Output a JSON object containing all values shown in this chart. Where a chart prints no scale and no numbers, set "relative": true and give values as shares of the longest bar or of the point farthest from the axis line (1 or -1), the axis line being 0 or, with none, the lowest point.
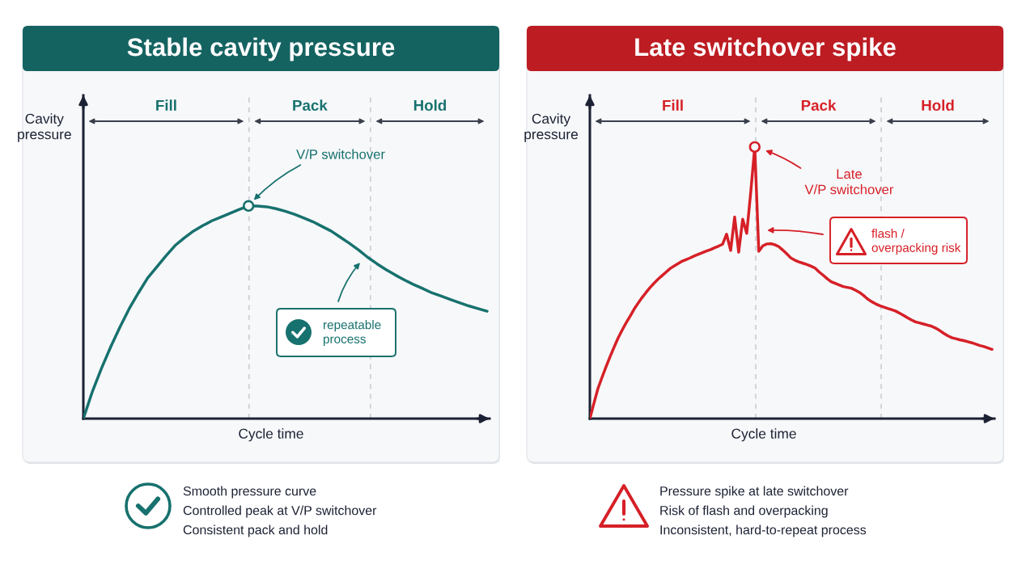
{
  "chart_data": [
    {
      "type": "line",
      "title": "Stable cavity pressure",
      "xlabel": "Cycle time",
      "ylabel": "Cavity\npressure",
      "relative": true,
      "categories": [
        null,
        null,
        null,
        null,
        null,
        null,
        null,
        null,
        null,
        null,
        null,
        null,
        null,
        null,
        null,
        null,
        null,
        null,
        null,
        null,
        null,
        null,
        null,
        null,
        null,
        null,
        null,
        null,
        null,
        null,
        null,
        null,
        null,
        null,
        null,
        null,
        null,
        null,
        null,
        null,
        null,
        null,
        null,
        null,
        null
      ],
      "series": [
        {
          "color": "#17716e",
          "values": [
            0,
            0.129,
            0.239,
            0.339,
            0.431,
            0.517,
            0.591,
            0.661,
            0.713,
            0.765,
            0.814,
            0.85,
            0.882,
            0.907,
            0.93,
            0.948,
            0.966,
            0.984,
            1.0,
            0.999,
            0.996,
            0.987,
            0.975,
            0.961,
            0.944,
            0.926,
            0.904,
            0.882,
            0.853,
            0.824,
            0.793,
            0.758,
            0.728,
            0.7,
            0.675,
            0.652,
            0.63,
            0.611,
            0.591,
            0.576,
            0.56,
            0.545,
            0.53,
            0.517,
            0.505
          ]
        }
      ],
      "annotations": [
        "Fill",
        "Pack",
        "Hold",
        "V/P switchover",
        "repeatable\nprocess",
        "Smooth pressure curve",
        "Controlled peak at V/P switchover",
        "Consistent pack and hold"
      ]
    },
    {
      "type": "line",
      "title": "Late switchover spike",
      "xlabel": "Cycle time",
      "ylabel": "Cavity\npressure",
      "relative": true,
      "categories": [
        null,
        null,
        null,
        null,
        null,
        null,
        null,
        null,
        null,
        null,
        null,
        null,
        null,
        null,
        null,
        null,
        null,
        null,
        null,
        null,
        null,
        null,
        null,
        null,
        null,
        null,
        null,
        null,
        null,
        null,
        null,
        null,
        null,
        null,
        null,
        null,
        null,
        null,
        null,
        null,
        null,
        null,
        null,
        null,
        null,
        null,
        null,
        null,
        null,
        null,
        null,
        null,
        null,
        null,
        null,
        null,
        null,
        null,
        null,
        null,
        null,
        null,
        null,
        null,
        null,
        null,
        null,
        null,
        null,
        null,
        null,
        null,
        null,
        null,
        null,
        null,
        null,
        null,
        null,
        null,
        null,
        null,
        null,
        null,
        null,
        null,
        null,
        null,
        null,
        null,
        null,
        null,
        null,
        null,
        null,
        null,
        null,
        null,
        null,
        null,
        null
      ],
      "series": [
        {
          "color": "#d62027",
          "values": [
            0,
            0.056,
            0.11,
            0.151,
            0.19,
            0.227,
            0.262,
            0.296,
            0.325,
            0.352,
            0.377,
            0.403,
            0.425,
            0.446,
            0.465,
            0.483,
            0.499,
            0.514,
            0.527,
            0.54,
            0.553,
            0.562,
            0.571,
            0.58,
            0.586,
            0.592,
            0.599,
            0.605,
            0.611,
            0.617,
            0.622,
            0.629,
            0.635,
            0.642,
            0.679,
            0.619,
            0.742,
            0.613,
            0.734,
            0.682,
            0.833,
            1.0,
            0.616,
            0.636,
            0.643,
            0.644,
            0.64,
            0.633,
            0.62,
            0.606,
            0.591,
            0.583,
            0.577,
            0.572,
            0.567,
            0.561,
            0.554,
            0.54,
            0.528,
            0.515,
            0.504,
            0.498,
            0.492,
            0.486,
            0.483,
            0.48,
            0.473,
            0.465,
            0.454,
            0.441,
            0.431,
            0.423,
            0.416,
            0.411,
            0.406,
            0.401,
            0.396,
            0.388,
            0.38,
            0.371,
            0.363,
            0.356,
            0.352,
            0.348,
            0.344,
            0.34,
            0.333,
            0.324,
            0.314,
            0.305,
            0.298,
            0.294,
            0.29,
            0.287,
            0.283,
            0.279,
            0.274,
            0.269,
            0.265,
            0.26,
            0.255
          ]
        }
      ],
      "annotations": [
        "Fill",
        "Pack",
        "Hold",
        "Late\nV/P switchover",
        "flash /\noverpacking risk",
        "Pressure spike at late switchover",
        "Risk of flash and overpacking",
        "Inconsistent, hard-to-repeat process"
      ]
    }
  ]
}
